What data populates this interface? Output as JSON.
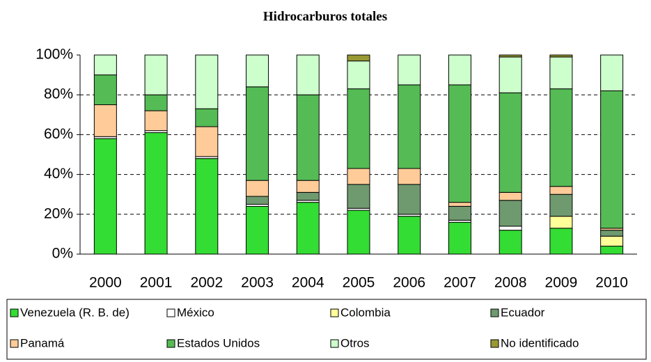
{
  "chart_data": {
    "type": "stacked_bar",
    "title": "Hidrocarburos totales",
    "categories": [
      "2000",
      "2001",
      "2002",
      "2003",
      "2004",
      "2005",
      "2006",
      "2007",
      "2008",
      "2009",
      "2010"
    ],
    "series": [
      {
        "name": "Venezuela (R. B. de)",
        "color": "#33dd33",
        "values": [
          58,
          61,
          48,
          24,
          26,
          22,
          19,
          16,
          12,
          13,
          4
        ]
      },
      {
        "name": "México",
        "color": "#ffffff",
        "values": [
          1,
          1,
          1,
          1,
          1,
          1,
          1,
          1,
          2,
          0,
          0
        ]
      },
      {
        "name": "Colombia",
        "color": "#ffff99",
        "values": [
          0,
          0,
          0,
          0,
          0,
          0,
          0,
          0,
          0,
          6,
          5
        ]
      },
      {
        "name": "Ecuador",
        "color": "#6f9a6f",
        "values": [
          0,
          0,
          0,
          4,
          4,
          12,
          15,
          7,
          13,
          11,
          3
        ]
      },
      {
        "name": "Panamá",
        "color": "#ffcc99",
        "values": [
          16,
          10,
          15,
          8,
          6,
          8,
          8,
          2,
          4,
          4,
          1
        ]
      },
      {
        "name": "Estados Unidos",
        "color": "#55bb55",
        "values": [
          15,
          8,
          9,
          47,
          43,
          40,
          42,
          59,
          50,
          49,
          69
        ]
      },
      {
        "name": "Otros",
        "color": "#ccffcc",
        "values": [
          10,
          20,
          27,
          16,
          20,
          14,
          15,
          15,
          18,
          16,
          18
        ]
      },
      {
        "name": "No identificado",
        "color": "#999933",
        "values": [
          0,
          0,
          0,
          0,
          0,
          3,
          0,
          0,
          1,
          1,
          0
        ]
      }
    ],
    "ylim": [
      0,
      100
    ],
    "yticks": [
      {
        "value": 0,
        "label": "0%"
      },
      {
        "value": 20,
        "label": "20%"
      },
      {
        "value": 40,
        "label": "40%"
      },
      {
        "value": 60,
        "label": "60%"
      },
      {
        "value": 80,
        "label": "80%"
      },
      {
        "value": 100,
        "label": "100%"
      }
    ],
    "grid": true
  }
}
